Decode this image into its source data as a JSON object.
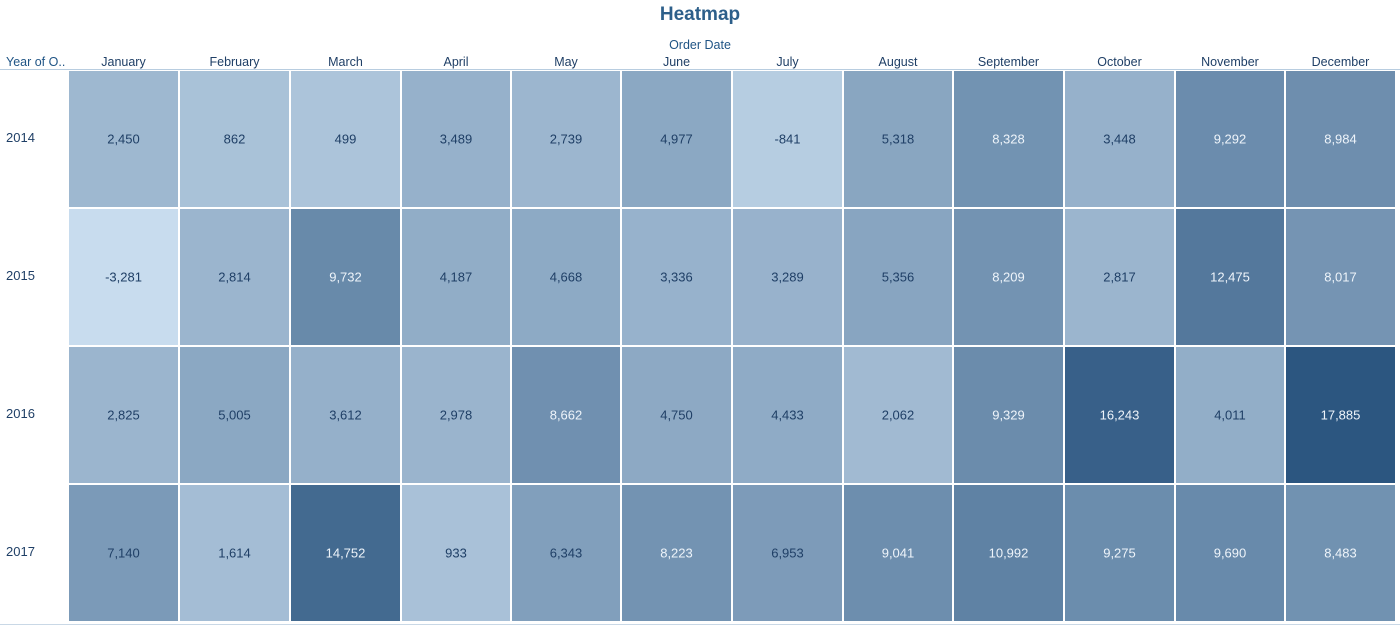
{
  "chart_data": {
    "type": "heatmap",
    "title": "Heatmap",
    "column_header": "Order Date",
    "row_header": "Year of O..",
    "columns": [
      "January",
      "February",
      "March",
      "April",
      "May",
      "June",
      "July",
      "August",
      "September",
      "October",
      "November",
      "December"
    ],
    "rows": [
      "2014",
      "2015",
      "2016",
      "2017"
    ],
    "values": [
      [
        2450,
        862,
        499,
        3489,
        2739,
        4977,
        -841,
        5318,
        8328,
        3448,
        9292,
        8984
      ],
      [
        -3281,
        2814,
        9732,
        4187,
        4668,
        3336,
        3289,
        5356,
        8209,
        2817,
        12475,
        8017
      ],
      [
        2825,
        5005,
        3612,
        2978,
        8662,
        4750,
        4433,
        2062,
        9329,
        16243,
        4011,
        17885
      ],
      [
        7140,
        1614,
        14752,
        933,
        6343,
        8223,
        6953,
        9041,
        10992,
        9275,
        9690,
        8483
      ]
    ],
    "labels": [
      [
        "2,450",
        "862",
        "499",
        "3,489",
        "2,739",
        "4,977",
        "-841",
        "5,318",
        "8,328",
        "3,448",
        "9,292",
        "8,984"
      ],
      [
        "-3,281",
        "2,814",
        "9,732",
        "4,187",
        "4,668",
        "3,336",
        "3,289",
        "5,356",
        "8,209",
        "2,817",
        "12,475",
        "8,017"
      ],
      [
        "2,825",
        "5,005",
        "3,612",
        "2,978",
        "8,662",
        "4,750",
        "4,433",
        "2,062",
        "9,329",
        "16,243",
        "4,011",
        "17,885"
      ],
      [
        "7,140",
        "1,614",
        "14,752",
        "933",
        "6,343",
        "8,223",
        "6,953",
        "9,041",
        "10,992",
        "9,275",
        "9,690",
        "8,483"
      ]
    ],
    "color_min": "#c8dcee",
    "color_max": "#2c5680",
    "grid": false,
    "legend": "none"
  }
}
